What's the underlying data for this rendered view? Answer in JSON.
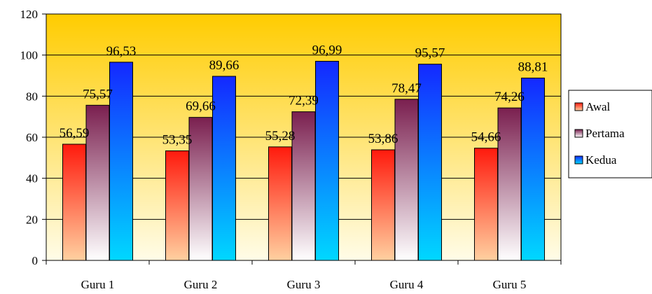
{
  "chart_data": {
    "type": "bar",
    "categories": [
      "Guru 1",
      "Guru 2",
      "Guru 3",
      "Guru 4",
      "Guru 5"
    ],
    "series": [
      {
        "name": "Awal",
        "values": [
          56.59,
          53.35,
          55.28,
          53.86,
          54.66
        ],
        "labels": [
          "56,59",
          "53,35",
          "55,28",
          "53,86",
          "54,66"
        ],
        "color": "#ff2a1a"
      },
      {
        "name": "Pertama",
        "values": [
          75.57,
          69.66,
          72.39,
          78.47,
          74.26
        ],
        "labels": [
          "75,57",
          "69,66",
          "72,39",
          "78,47",
          "74,26"
        ],
        "color": "#8a2a5a"
      },
      {
        "name": "Kedua",
        "values": [
          96.53,
          89.66,
          96.99,
          95.57,
          88.81
        ],
        "labels": [
          "96,53",
          "89,66",
          "96,99",
          "95,57",
          "88,81"
        ],
        "color": "#1a3aff"
      }
    ],
    "yticks": [
      "0",
      "20",
      "40",
      "60",
      "80",
      "100",
      "120"
    ],
    "ylim": [
      0,
      120
    ],
    "grid": true,
    "legend": "right",
    "background_top": "#ffcc00",
    "background_bottom": "#fffbe0"
  }
}
